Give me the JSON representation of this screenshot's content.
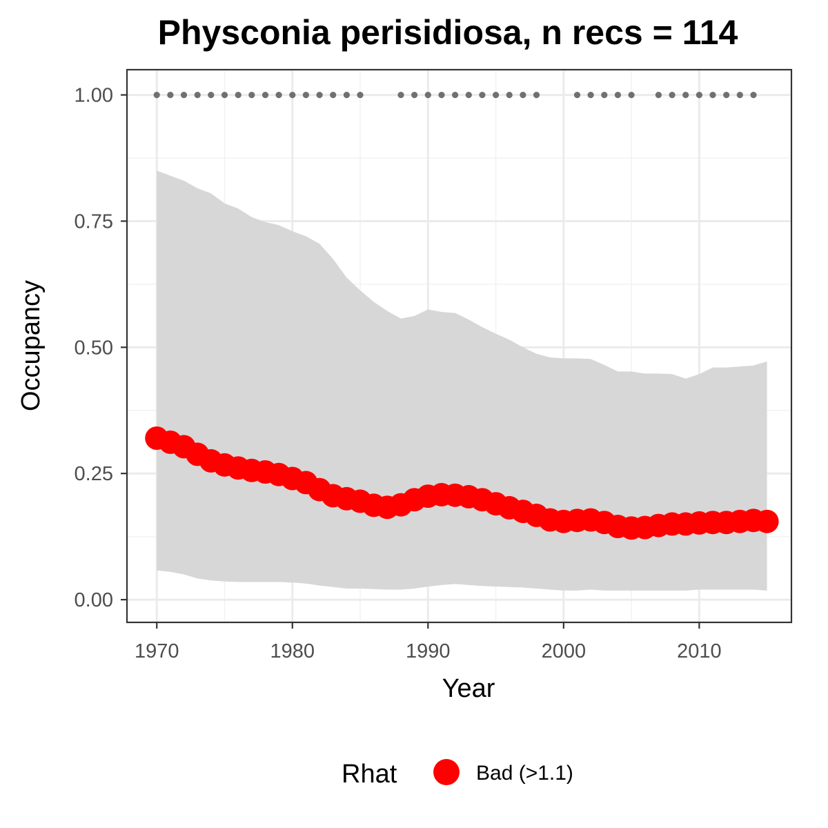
{
  "chart_data": {
    "type": "line",
    "title": "Physconia perisidiosa, n recs = 114",
    "xlabel": "Year",
    "ylabel": "Occupancy",
    "xlim": [
      1967.8,
      2016.8
    ],
    "ylim": [
      -0.045,
      1.05
    ],
    "x_ticks": [
      1970,
      1980,
      1990,
      2000,
      2010
    ],
    "x_tick_labels": [
      "1970",
      "1980",
      "1990",
      "2000",
      "2010"
    ],
    "y_ticks": [
      0,
      0.25,
      0.5,
      0.75,
      1
    ],
    "y_tick_labels": [
      "0.00",
      "0.25",
      "0.50",
      "0.75",
      "1.00"
    ],
    "grid": true,
    "years": [
      1970,
      1971,
      1972,
      1973,
      1974,
      1975,
      1976,
      1977,
      1978,
      1979,
      1980,
      1981,
      1982,
      1983,
      1984,
      1985,
      1986,
      1987,
      1988,
      1989,
      1990,
      1991,
      1992,
      1993,
      1994,
      1995,
      1996,
      1997,
      1998,
      1999,
      2000,
      2001,
      2002,
      2003,
      2004,
      2005,
      2006,
      2007,
      2008,
      2009,
      2010,
      2011,
      2012,
      2013,
      2014,
      2015
    ],
    "series": [
      {
        "role": "occupancy-mean",
        "color": "#ff0000",
        "values": [
          0.32,
          0.312,
          0.303,
          0.288,
          0.275,
          0.267,
          0.261,
          0.256,
          0.253,
          0.248,
          0.24,
          0.232,
          0.218,
          0.206,
          0.2,
          0.195,
          0.187,
          0.183,
          0.188,
          0.198,
          0.205,
          0.208,
          0.207,
          0.204,
          0.198,
          0.19,
          0.182,
          0.175,
          0.167,
          0.158,
          0.155,
          0.157,
          0.158,
          0.153,
          0.145,
          0.142,
          0.143,
          0.147,
          0.15,
          0.15,
          0.152,
          0.153,
          0.153,
          0.155,
          0.157,
          0.155
        ]
      },
      {
        "role": "credible-interval-upper",
        "color": "#d6d6d6",
        "values": [
          0.85,
          0.84,
          0.83,
          0.815,
          0.805,
          0.785,
          0.775,
          0.758,
          0.748,
          0.742,
          0.73,
          0.72,
          0.705,
          0.675,
          0.638,
          0.613,
          0.59,
          0.572,
          0.557,
          0.562,
          0.575,
          0.57,
          0.568,
          0.555,
          0.54,
          0.527,
          0.515,
          0.5,
          0.487,
          0.48,
          0.478,
          0.478,
          0.477,
          0.465,
          0.452,
          0.452,
          0.448,
          0.448,
          0.447,
          0.438,
          0.447,
          0.46,
          0.46,
          0.462,
          0.464,
          0.472
        ]
      },
      {
        "role": "credible-interval-lower",
        "color": "#d6d6d6",
        "values": [
          0.058,
          0.055,
          0.05,
          0.042,
          0.038,
          0.036,
          0.035,
          0.035,
          0.035,
          0.035,
          0.034,
          0.032,
          0.028,
          0.025,
          0.022,
          0.022,
          0.021,
          0.02,
          0.02,
          0.022,
          0.026,
          0.029,
          0.031,
          0.029,
          0.027,
          0.026,
          0.025,
          0.024,
          0.022,
          0.02,
          0.018,
          0.018,
          0.02,
          0.018,
          0.018,
          0.018,
          0.018,
          0.018,
          0.018,
          0.018,
          0.02,
          0.02,
          0.02,
          0.02,
          0.02,
          0.018
        ]
      },
      {
        "role": "data-years",
        "color": "#707070",
        "x": [
          1970,
          1971,
          1972,
          1973,
          1974,
          1975,
          1976,
          1977,
          1978,
          1979,
          1980,
          1981,
          1982,
          1983,
          1984,
          1985,
          1988,
          1989,
          1990,
          1991,
          1992,
          1993,
          1994,
          1995,
          1996,
          1997,
          1998,
          2001,
          2002,
          2003,
          2004,
          2005,
          2007,
          2008,
          2009,
          2010,
          2011,
          2012,
          2013,
          2014
        ],
        "y": 1.0
      }
    ],
    "legend": {
      "placement": "bottom",
      "title": "Rhat",
      "items": [
        {
          "label": "Bad (>1.1)",
          "color": "#ff0000"
        }
      ]
    }
  }
}
